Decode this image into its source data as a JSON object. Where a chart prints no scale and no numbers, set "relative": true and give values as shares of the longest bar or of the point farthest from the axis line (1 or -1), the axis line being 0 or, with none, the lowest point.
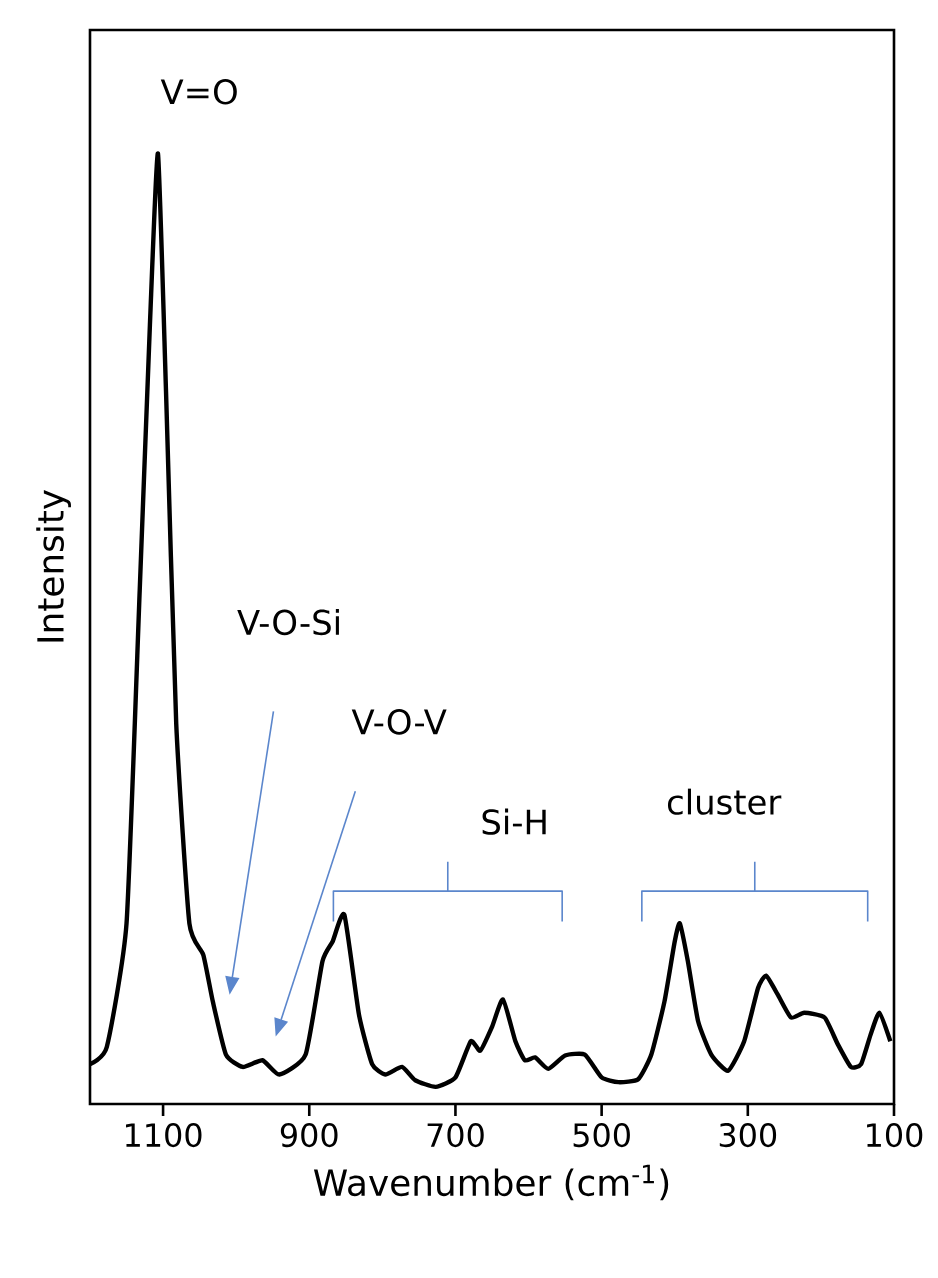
{
  "chart_data": {
    "type": "line",
    "relative": true,
    "xlabel": "Wavenumber (cm$^{-1}$)",
    "ylabel": "Intensity",
    "xlim": [
      1200,
      100
    ],
    "xticks": [
      1100,
      900,
      700,
      500,
      300,
      100
    ],
    "annotations": [
      "V=O",
      "V-O-Si",
      "V-O-V",
      "Si-H",
      "cluster"
    ],
    "series": [
      {
        "color": "#000000",
        "x": [
          1200,
          1177,
          1150,
          1132,
          1118,
          1107,
          1096,
          1082,
          1064,
          1045,
          1032,
          1014,
          991,
          964,
          941,
          905,
          882,
          868,
          852,
          832,
          814,
          796,
          773,
          755,
          727,
          700,
          679,
          666,
          650,
          635,
          618,
          605,
          591,
          573,
          550,
          523,
          500,
          477,
          450,
          432,
          414,
          400,
          393,
          382,
          368,
          350,
          327,
          305,
          286,
          275,
          259,
          241,
          223,
          195,
          177,
          159,
          145,
          132,
          120,
          105
        ],
        "values": [
          0.042,
          0.06,
          0.19,
          0.54,
          0.82,
          1.0,
          0.75,
          0.4,
          0.19,
          0.157,
          0.108,
          0.052,
          0.039,
          0.046,
          0.031,
          0.052,
          0.15,
          0.171,
          0.199,
          0.094,
          0.042,
          0.031,
          0.039,
          0.025,
          0.018,
          0.028,
          0.066,
          0.056,
          0.081,
          0.11,
          0.066,
          0.046,
          0.049,
          0.037,
          0.051,
          0.052,
          0.028,
          0.023,
          0.026,
          0.052,
          0.108,
          0.171,
          0.19,
          0.15,
          0.087,
          0.052,
          0.035,
          0.066,
          0.122,
          0.135,
          0.115,
          0.091,
          0.096,
          0.091,
          0.063,
          0.039,
          0.042,
          0.073,
          0.096,
          0.066
        ]
      }
    ]
  }
}
